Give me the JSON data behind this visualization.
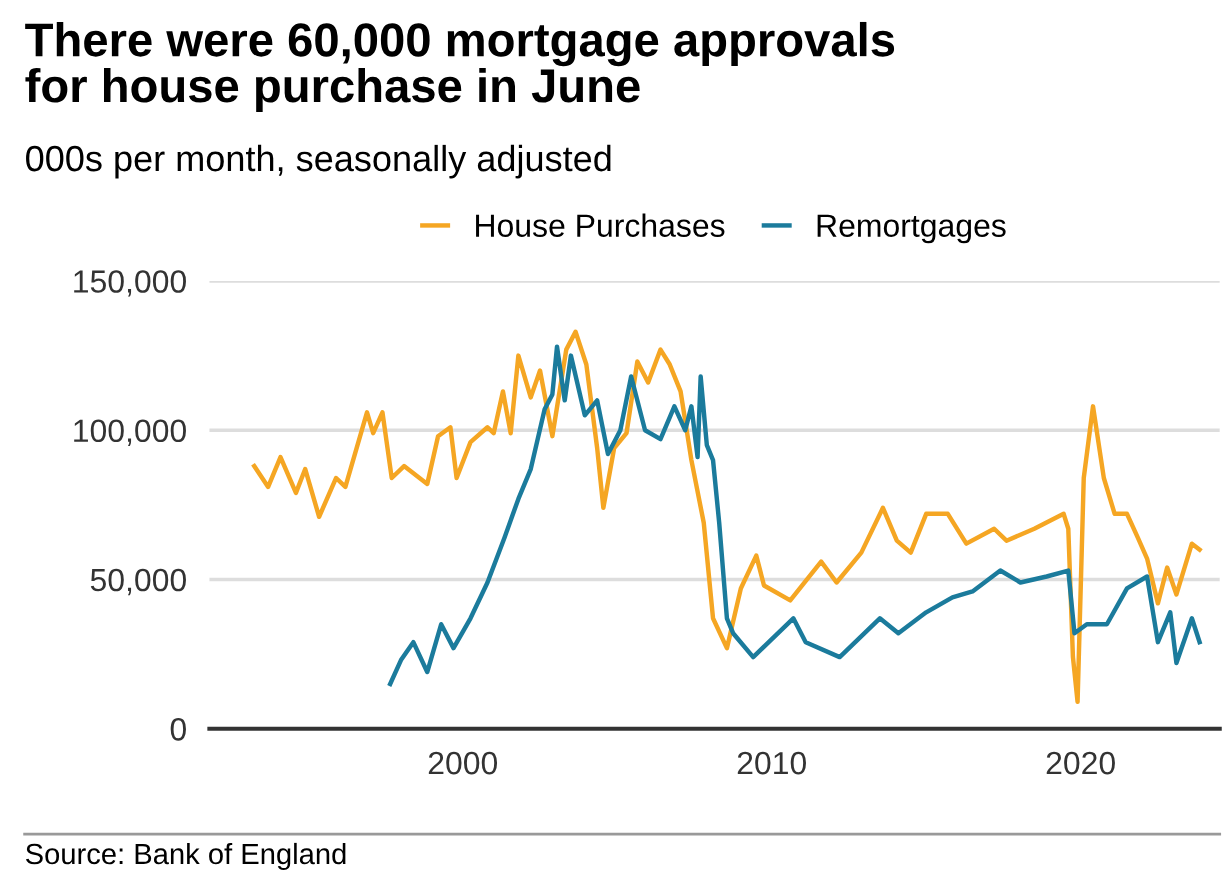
{
  "chart_data": {
    "type": "line",
    "title": "There were 60,000 mortgage approvals\nfor house purchase in June",
    "subtitle": "000s per month, seasonally adjusted",
    "annotations": [
      "Source: Bank of England"
    ],
    "xlim": [
      1991.8,
      2024.5
    ],
    "xticks": [
      2000,
      2010,
      2020
    ],
    "ylim": [
      0,
      150000
    ],
    "yticks": [
      {
        "value": 0,
        "label": "0"
      },
      {
        "value": 50000,
        "label": "50,000"
      },
      {
        "value": 100000,
        "label": "100,000"
      },
      {
        "value": 150000,
        "label": "150,000"
      }
    ],
    "grid": "y",
    "legend": "top",
    "marker": "none",
    "line_style": "solid",
    "series": [
      {
        "name": "House Purchases",
        "color": "#f5a623",
        "x": [
          1993.25,
          1993.7,
          1994.1,
          1994.6,
          1994.9,
          1995.35,
          1995.9,
          1996.2,
          1996.9,
          1997.1,
          1997.4,
          1997.7,
          1998.1,
          1998.85,
          1999.2,
          1999.6,
          1999.8,
          2000.25,
          2000.8,
          2001.0,
          2001.3,
          2001.55,
          2001.8,
          2002.2,
          2002.5,
          2002.9,
          2003.35,
          2003.65,
          2004.0,
          2004.35,
          2004.55,
          2004.9,
          2005.3,
          2005.65,
          2006.0,
          2006.4,
          2006.7,
          2007.05,
          2007.4,
          2007.8,
          2008.1,
          2008.55,
          2009.0,
          2009.5,
          2009.75,
          2010.6,
          2011.6,
          2012.1,
          2012.9,
          2013.6,
          2014.05,
          2014.5,
          2015.0,
          2015.7,
          2016.3,
          2017.2,
          2017.6,
          2018.5,
          2019.45,
          2019.6,
          2019.75,
          2019.9,
          2020.1,
          2020.4,
          2020.75,
          2021.1,
          2021.5,
          2021.85,
          2022.15,
          2022.5,
          2022.8,
          2023.1,
          2023.6,
          2023.85
        ],
        "values": [
          88000,
          81000,
          91000,
          79000,
          87000,
          71000,
          84000,
          81000,
          106000,
          99000,
          106000,
          84000,
          88000,
          82000,
          98000,
          101000,
          84000,
          96000,
          101000,
          99000,
          113000,
          99000,
          125000,
          111000,
          120000,
          98000,
          127000,
          133000,
          122000,
          94000,
          74000,
          94000,
          99000,
          123000,
          116000,
          127000,
          122000,
          113000,
          90000,
          69000,
          37000,
          27000,
          47000,
          58000,
          48000,
          43000,
          56000,
          49000,
          59000,
          74000,
          63000,
          59000,
          72000,
          72000,
          62000,
          67000,
          63000,
          67000,
          72000,
          67000,
          24000,
          9000,
          84000,
          108000,
          84000,
          72000,
          72000,
          64000,
          57000,
          42000,
          54000,
          45000,
          62000,
          60000
        ]
      },
      {
        "name": "Remortgages",
        "color": "#1b7b9c",
        "x": [
          1997.65,
          1998.0,
          1998.4,
          1998.85,
          1999.3,
          1999.7,
          2000.25,
          2000.8,
          2001.35,
          2001.8,
          2002.2,
          2002.65,
          2002.9,
          2003.05,
          2003.3,
          2003.5,
          2003.95,
          2004.35,
          2004.7,
          2005.1,
          2005.45,
          2005.9,
          2006.4,
          2006.85,
          2007.2,
          2007.4,
          2007.6,
          2007.7,
          2007.9,
          2008.1,
          2008.3,
          2008.55,
          2008.75,
          2009.4,
          2010.7,
          2011.1,
          2012.2,
          2013.5,
          2014.1,
          2015.0,
          2015.85,
          2016.5,
          2017.4,
          2018.05,
          2018.9,
          2019.6,
          2019.8,
          2020.2,
          2020.85,
          2021.5,
          2022.15,
          2022.5,
          2022.9,
          2023.1,
          2023.6,
          2023.85
        ],
        "values": [
          15000,
          23000,
          29000,
          19000,
          35000,
          27000,
          37000,
          49000,
          64000,
          77000,
          87000,
          107000,
          112000,
          128000,
          110000,
          125000,
          105000,
          110000,
          92000,
          100000,
          118000,
          100000,
          97000,
          108000,
          100000,
          108000,
          91000,
          118000,
          95000,
          90000,
          69000,
          37000,
          32000,
          24000,
          37000,
          29000,
          24000,
          37000,
          32000,
          39000,
          44000,
          46000,
          53000,
          49000,
          51000,
          53000,
          32000,
          35000,
          35000,
          47000,
          51000,
          29000,
          39000,
          22000,
          37000,
          29000
        ]
      }
    ]
  }
}
